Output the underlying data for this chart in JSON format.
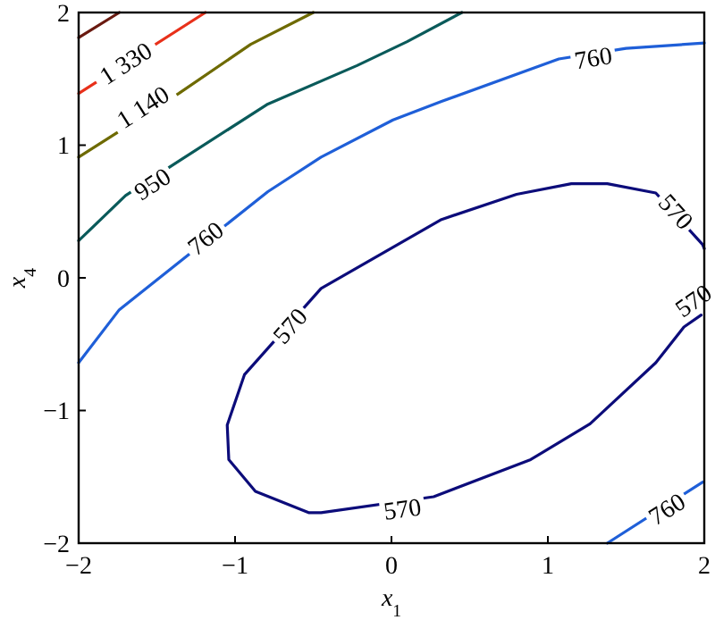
{
  "chart_data": {
    "type": "line",
    "xlabel": "x$_{1}$",
    "ylabel": "x$_{4}$",
    "xlim": [
      -2,
      2
    ],
    "ylim": [
      -2,
      2
    ],
    "xticks": [
      {
        "value": -2,
        "label": "−2"
      },
      {
        "value": -1,
        "label": "−1"
      },
      0,
      1,
      2
    ],
    "yticks": [
      {
        "value": -2,
        "label": "−2"
      },
      {
        "value": -1,
        "label": "−1"
      },
      0,
      1,
      2
    ],
    "grid": false,
    "marker": "none",
    "line_style": "solid",
    "series": [
      {
        "color": "#0c0c7a",
        "x": [
          2.0,
          1.99,
          1.69,
          1.38,
          1.15,
          0.8,
          0.32,
          -0.45,
          -0.94,
          -1.05,
          -1.04,
          -0.87,
          -0.53,
          -0.45,
          0.27,
          0.89,
          1.27,
          1.69,
          1.87,
          1.98
        ],
        "values": [
          0.22,
          0.25,
          0.64,
          0.71,
          0.71,
          0.63,
          0.44,
          -0.08,
          -0.73,
          -1.11,
          -1.37,
          -1.61,
          -1.77,
          -1.77,
          -1.65,
          -1.37,
          -1.1,
          -0.64,
          -0.37,
          -0.28
        ]
      },
      {
        "color": "#1f5fd8",
        "x": [
          -2,
          -1.74,
          -0.79,
          -0.45,
          0.01,
          0.32,
          1.07,
          1.5,
          2
        ],
        "values": [
          -0.64,
          -0.24,
          0.65,
          0.91,
          1.19,
          1.33,
          1.65,
          1.73,
          1.77
        ]
      },
      {
        "color": "#1f5fd8",
        "x": [
          1.38,
          1.99
        ],
        "values": [
          -2,
          -1.54
        ]
      },
      {
        "color": "#0a5a5a",
        "x": [
          -2,
          -1.7,
          -1.36,
          -0.79,
          -0.22,
          0.1,
          0.45
        ],
        "values": [
          0.28,
          0.62,
          0.88,
          1.31,
          1.6,
          1.78,
          2
        ]
      },
      {
        "color": "#6e6a00",
        "x": [
          -2,
          -1.36,
          -0.9,
          -0.5
        ],
        "values": [
          0.91,
          1.39,
          1.76,
          2
        ]
      },
      {
        "color": "#e8301a",
        "x": [
          -2,
          -1.19
        ],
        "values": [
          1.39,
          2
        ]
      },
      {
        "color": "#6a1a10",
        "x": [
          -2,
          -1.74
        ],
        "values": [
          1.81,
          2
        ]
      }
    ],
    "annotations": [
      {
        "text": "1 330",
        "x": -1.7,
        "y": 1.62
      },
      {
        "text": "1 140",
        "x": -1.59,
        "y": 1.29
      },
      {
        "text": "950",
        "x": -1.53,
        "y": 0.71
      },
      {
        "text": "760",
        "x": -1.19,
        "y": 0.3
      },
      {
        "text": "760",
        "x": 1.29,
        "y": 1.66
      },
      {
        "text": "570",
        "x": 1.82,
        "y": 0.5
      },
      {
        "text": "570",
        "x": 1.93,
        "y": -0.17
      },
      {
        "text": "570",
        "x": 0.07,
        "y": -1.74
      },
      {
        "text": "570",
        "x": -0.65,
        "y": -0.36
      },
      {
        "text": "760",
        "x": 1.76,
        "y": -1.74
      }
    ]
  }
}
